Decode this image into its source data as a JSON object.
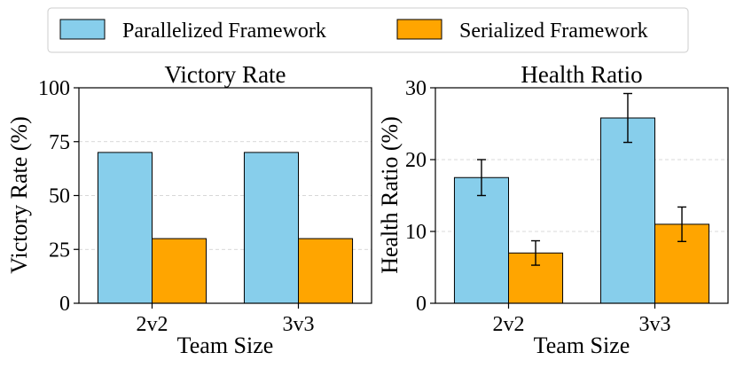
{
  "legend": {
    "items": [
      {
        "name": "Parallelized Framework",
        "color": "#87CEEB"
      },
      {
        "name": "Serialized Framework",
        "color": "#FFA500"
      }
    ]
  },
  "chart_data": [
    {
      "type": "bar",
      "title": "Victory Rate",
      "xlabel": "Team Size",
      "ylabel": "Victory Rate (%)",
      "categories": [
        "2v2",
        "3v3"
      ],
      "ylim": [
        0,
        100
      ],
      "yticks": [
        0,
        25,
        50,
        75,
        100
      ],
      "grid": "y-dashed",
      "series": [
        {
          "name": "Parallelized Framework",
          "color": "#87CEEB",
          "values": [
            70,
            70
          ]
        },
        {
          "name": "Serialized Framework",
          "color": "#FFA500",
          "values": [
            30,
            30
          ]
        }
      ]
    },
    {
      "type": "bar",
      "title": "Health Ratio",
      "xlabel": "Team Size",
      "ylabel": "Health Ratio (%)",
      "categories": [
        "2v2",
        "3v3"
      ],
      "ylim": [
        0,
        30
      ],
      "yticks": [
        0,
        10,
        20,
        30
      ],
      "grid": "y-dashed",
      "series": [
        {
          "name": "Parallelized Framework",
          "color": "#87CEEB",
          "values": [
            17.5,
            25.8
          ],
          "errors": [
            2.5,
            3.4
          ]
        },
        {
          "name": "Serialized Framework",
          "color": "#FFA500",
          "values": [
            7.0,
            11.0
          ],
          "errors": [
            1.7,
            2.4
          ]
        }
      ]
    }
  ]
}
